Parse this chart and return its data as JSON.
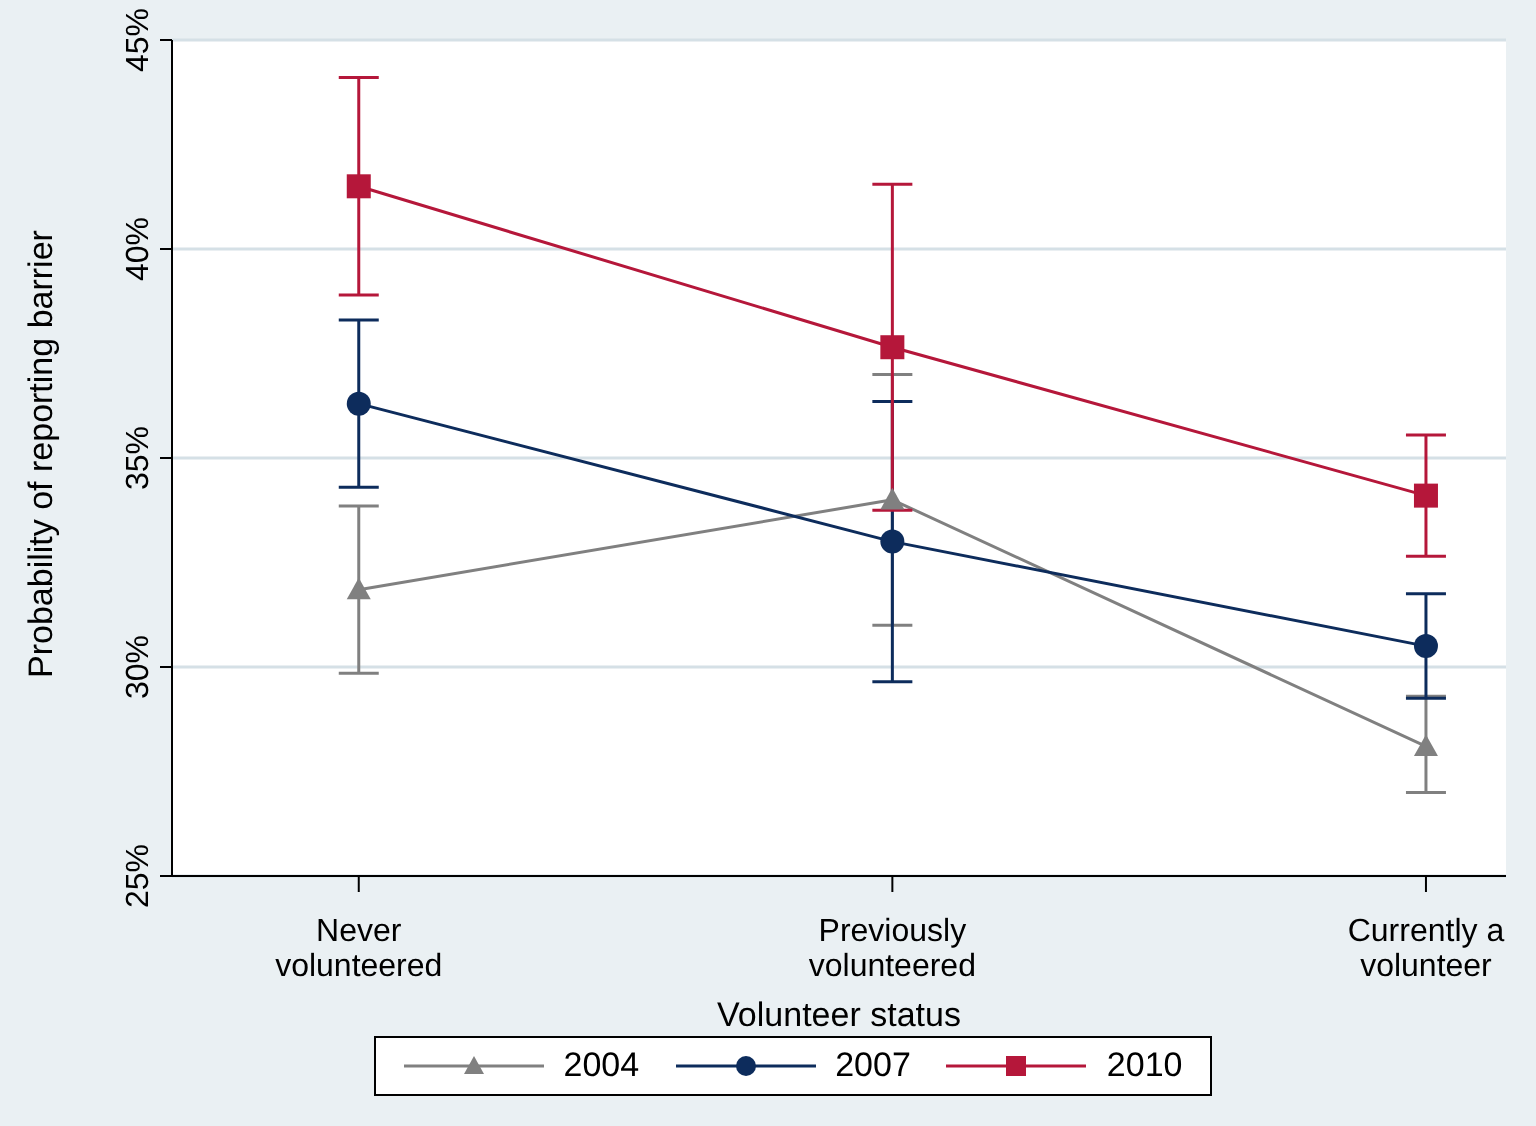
{
  "chart_data": {
    "type": "line",
    "xlabel": "Volunteer status",
    "ylabel": "Probability of reporting barrier",
    "categories": [
      "Never volunteered",
      "Previously volunteered",
      "Currently a volunteer"
    ],
    "series": [
      {
        "name": "2004",
        "color": "#808080",
        "marker": "triangle",
        "values": [
          31.85,
          34.0,
          28.1
        ],
        "errors": [
          [
            29.85,
            33.85
          ],
          [
            31.0,
            37.0
          ],
          [
            27.0,
            29.3
          ]
        ]
      },
      {
        "name": "2007",
        "color": "#0d2c5c",
        "marker": "circle",
        "values": [
          36.3,
          33.0,
          30.5
        ],
        "errors": [
          [
            34.3,
            38.3
          ],
          [
            29.65,
            36.35
          ],
          [
            29.25,
            31.75
          ]
        ]
      },
      {
        "name": "2010",
        "color": "#b5173a",
        "marker": "square",
        "values": [
          41.5,
          37.65,
          34.1
        ],
        "errors": [
          [
            38.9,
            44.1
          ],
          [
            33.75,
            41.55
          ],
          [
            32.65,
            35.55
          ]
        ]
      }
    ],
    "ylim": [
      25,
      45
    ],
    "yticks": [
      {
        "value": 25,
        "label": "25%"
      },
      {
        "value": 30,
        "label": "30%"
      },
      {
        "value": 35,
        "label": "35%"
      },
      {
        "value": 40,
        "label": "40%"
      },
      {
        "value": 45,
        "label": "45%"
      }
    ],
    "grid": "y",
    "legend": "bottom"
  }
}
